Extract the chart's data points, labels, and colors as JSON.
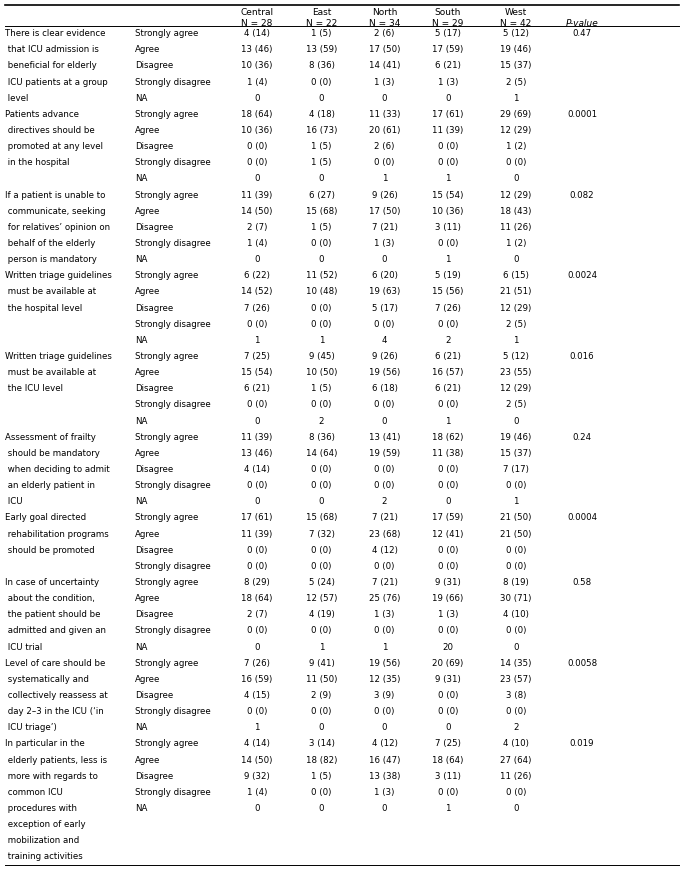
{
  "rows": [
    [
      "There is clear evidence",
      "Strongly agree",
      "4 (14)",
      "1 (5)",
      "2 (6)",
      "5 (17)",
      "5 (12)",
      "0.47"
    ],
    [
      " that ICU admission is",
      "Agree",
      "13 (46)",
      "13 (59)",
      "17 (50)",
      "17 (59)",
      "19 (46)",
      ""
    ],
    [
      " beneficial for elderly",
      "Disagree",
      "10 (36)",
      "8 (36)",
      "14 (41)",
      "6 (21)",
      "15 (37)",
      ""
    ],
    [
      " ICU patients at a group",
      "Strongly disagree",
      "1 (4)",
      "0 (0)",
      "1 (3)",
      "1 (3)",
      "2 (5)",
      ""
    ],
    [
      " level",
      "NA",
      "0",
      "0",
      "0",
      "0",
      "1",
      ""
    ],
    [
      "Patients advance",
      "Strongly agree",
      "18 (64)",
      "4 (18)",
      "11 (33)",
      "17 (61)",
      "29 (69)",
      "0.0001"
    ],
    [
      " directives should be",
      "Agree",
      "10 (36)",
      "16 (73)",
      "20 (61)",
      "11 (39)",
      "12 (29)",
      ""
    ],
    [
      " promoted at any level",
      "Disagree",
      "0 (0)",
      "1 (5)",
      "2 (6)",
      "0 (0)",
      "1 (2)",
      ""
    ],
    [
      " in the hospital",
      "Strongly disagree",
      "0 (0)",
      "1 (5)",
      "0 (0)",
      "0 (0)",
      "0 (0)",
      ""
    ],
    [
      "",
      "NA",
      "0",
      "0",
      "1",
      "1",
      "0",
      ""
    ],
    [
      "If a patient is unable to",
      "Strongly agree",
      "11 (39)",
      "6 (27)",
      "9 (26)",
      "15 (54)",
      "12 (29)",
      "0.082"
    ],
    [
      " communicate, seeking",
      "Agree",
      "14 (50)",
      "15 (68)",
      "17 (50)",
      "10 (36)",
      "18 (43)",
      ""
    ],
    [
      " for relatives’ opinion on",
      "Disagree",
      "2 (7)",
      "1 (5)",
      "7 (21)",
      "3 (11)",
      "11 (26)",
      ""
    ],
    [
      " behalf of the elderly",
      "Strongly disagree",
      "1 (4)",
      "0 (0)",
      "1 (3)",
      "0 (0)",
      "1 (2)",
      ""
    ],
    [
      " person is mandatory",
      "NA",
      "0",
      "0",
      "0",
      "1",
      "0",
      ""
    ],
    [
      "Written triage guidelines",
      "Strongly agree",
      "6 (22)",
      "11 (52)",
      "6 (20)",
      "5 (19)",
      "6 (15)",
      "0.0024"
    ],
    [
      " must be available at",
      "Agree",
      "14 (52)",
      "10 (48)",
      "19 (63)",
      "15 (56)",
      "21 (51)",
      ""
    ],
    [
      " the hospital level",
      "Disagree",
      "7 (26)",
      "0 (0)",
      "5 (17)",
      "7 (26)",
      "12 (29)",
      ""
    ],
    [
      "",
      "Strongly disagree",
      "0 (0)",
      "0 (0)",
      "0 (0)",
      "0 (0)",
      "2 (5)",
      ""
    ],
    [
      "",
      "NA",
      "1",
      "1",
      "4",
      "2",
      "1",
      ""
    ],
    [
      "Written triage guidelines",
      "Strongly agree",
      "7 (25)",
      "9 (45)",
      "9 (26)",
      "6 (21)",
      "5 (12)",
      "0.016"
    ],
    [
      " must be available at",
      "Agree",
      "15 (54)",
      "10 (50)",
      "19 (56)",
      "16 (57)",
      "23 (55)",
      ""
    ],
    [
      " the ICU level",
      "Disagree",
      "6 (21)",
      "1 (5)",
      "6 (18)",
      "6 (21)",
      "12 (29)",
      ""
    ],
    [
      "",
      "Strongly disagree",
      "0 (0)",
      "0 (0)",
      "0 (0)",
      "0 (0)",
      "2 (5)",
      ""
    ],
    [
      "",
      "NA",
      "0",
      "2",
      "0",
      "1",
      "0",
      ""
    ],
    [
      "Assessment of frailty",
      "Strongly agree",
      "11 (39)",
      "8 (36)",
      "13 (41)",
      "18 (62)",
      "19 (46)",
      "0.24"
    ],
    [
      " should be mandatory",
      "Agree",
      "13 (46)",
      "14 (64)",
      "19 (59)",
      "11 (38)",
      "15 (37)",
      ""
    ],
    [
      " when deciding to admit",
      "Disagree",
      "4 (14)",
      "0 (0)",
      "0 (0)",
      "0 (0)",
      "7 (17)",
      ""
    ],
    [
      " an elderly patient in",
      "Strongly disagree",
      "0 (0)",
      "0 (0)",
      "0 (0)",
      "0 (0)",
      "0 (0)",
      ""
    ],
    [
      " ICU",
      "NA",
      "0",
      "0",
      "2",
      "0",
      "1",
      ""
    ],
    [
      "Early goal directed",
      "Strongly agree",
      "17 (61)",
      "15 (68)",
      "7 (21)",
      "17 (59)",
      "21 (50)",
      "0.0004"
    ],
    [
      " rehabilitation programs",
      "Agree",
      "11 (39)",
      "7 (32)",
      "23 (68)",
      "12 (41)",
      "21 (50)",
      ""
    ],
    [
      " should be promoted",
      "Disagree",
      "0 (0)",
      "0 (0)",
      "4 (12)",
      "0 (0)",
      "0 (0)",
      ""
    ],
    [
      "",
      "Strongly disagree",
      "0 (0)",
      "0 (0)",
      "0 (0)",
      "0 (0)",
      "0 (0)",
      ""
    ],
    [
      "In case of uncertainty",
      "Strongly agree",
      "8 (29)",
      "5 (24)",
      "7 (21)",
      "9 (31)",
      "8 (19)",
      "0.58"
    ],
    [
      " about the condition,",
      "Agree",
      "18 (64)",
      "12 (57)",
      "25 (76)",
      "19 (66)",
      "30 (71)",
      ""
    ],
    [
      " the patient should be",
      "Disagree",
      "2 (7)",
      "4 (19)",
      "1 (3)",
      "1 (3)",
      "4 (10)",
      ""
    ],
    [
      " admitted and given an",
      "Strongly disagree",
      "0 (0)",
      "0 (0)",
      "0 (0)",
      "0 (0)",
      "0 (0)",
      ""
    ],
    [
      " ICU trial",
      "NA",
      "0",
      "1",
      "1",
      "20",
      "0",
      ""
    ],
    [
      "Level of care should be",
      "Strongly agree",
      "7 (26)",
      "9 (41)",
      "19 (56)",
      "20 (69)",
      "14 (35)",
      "0.0058"
    ],
    [
      " systematically and",
      "Agree",
      "16 (59)",
      "11 (50)",
      "12 (35)",
      "9 (31)",
      "23 (57)",
      ""
    ],
    [
      " collectively reassess at",
      "Disagree",
      "4 (15)",
      "2 (9)",
      "3 (9)",
      "0 (0)",
      "3 (8)",
      ""
    ],
    [
      " day 2–3 in the ICU (‘in",
      "Strongly disagree",
      "0 (0)",
      "0 (0)",
      "0 (0)",
      "0 (0)",
      "0 (0)",
      ""
    ],
    [
      " ICU triage’)",
      "NA",
      "1",
      "0",
      "0",
      "0",
      "2",
      ""
    ],
    [
      "In particular in the",
      "Strongly agree",
      "4 (14)",
      "3 (14)",
      "4 (12)",
      "7 (25)",
      "4 (10)",
      "0.019"
    ],
    [
      " elderly patients, less is",
      "Agree",
      "14 (50)",
      "18 (82)",
      "16 (47)",
      "18 (64)",
      "27 (64)",
      ""
    ],
    [
      " more with regards to",
      "Disagree",
      "9 (32)",
      "1 (5)",
      "13 (38)",
      "3 (11)",
      "11 (26)",
      ""
    ],
    [
      " common ICU",
      "Strongly disagree",
      "1 (4)",
      "0 (0)",
      "1 (3)",
      "0 (0)",
      "0 (0)",
      ""
    ],
    [
      " procedures with",
      "NA",
      "0",
      "0",
      "0",
      "1",
      "0",
      ""
    ],
    [
      " exception of early",
      "",
      "",
      "",
      "",
      "",
      "",
      ""
    ],
    [
      " mobilization and",
      "",
      "",
      "",
      "",
      "",
      "",
      ""
    ],
    [
      " training activities",
      "",
      "",
      "",
      "",
      "",
      "",
      ""
    ]
  ],
  "font_size": 6.2,
  "header_font_size": 6.5,
  "bg_color": "#ffffff",
  "text_color": "#000000",
  "line_color": "#000000"
}
